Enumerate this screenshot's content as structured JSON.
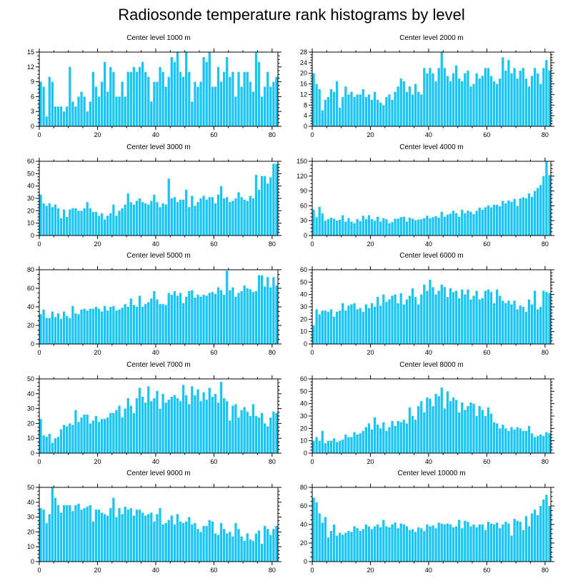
{
  "title": "Radiosonde temperature rank histograms by level",
  "colors": {
    "bar": "#1AC4F2",
    "axis": "#000000"
  },
  "chart_data": [
    {
      "type": "bar",
      "title": "Center level 1000 m",
      "xlim": [
        0,
        82
      ],
      "ylim": [
        0,
        15
      ],
      "xticks": [
        0,
        20,
        40,
        60,
        80
      ],
      "yticks": [
        0,
        3,
        6,
        9,
        12,
        15
      ],
      "values": [
        9,
        8,
        2,
        10,
        9,
        4,
        4,
        4,
        3,
        4,
        12,
        5,
        4,
        6,
        7,
        6,
        3,
        5,
        11,
        8,
        6,
        9,
        13,
        7,
        12,
        11,
        6,
        6,
        9,
        6,
        11,
        11,
        12,
        11,
        12,
        13,
        11,
        10,
        5,
        9,
        9,
        12,
        11,
        8,
        10,
        14,
        13,
        15,
        11,
        10,
        15,
        11,
        5,
        9,
        8,
        9,
        14,
        13,
        15,
        8,
        8,
        12,
        9,
        11,
        14,
        10,
        11,
        6,
        11,
        8,
        11,
        11,
        9,
        7,
        15,
        13,
        6,
        8,
        11,
        8,
        9,
        10
      ],
      "xlabel": "",
      "ylabel": ""
    },
    {
      "type": "bar",
      "title": "Center level 2000 m",
      "xlim": [
        0,
        82
      ],
      "ylim": [
        0,
        28
      ],
      "xticks": [
        0,
        20,
        40,
        60,
        80
      ],
      "yticks": [
        0,
        4,
        8,
        12,
        16,
        20,
        24,
        28
      ],
      "values": [
        20,
        16,
        14,
        6,
        10,
        11,
        14,
        13,
        17,
        7,
        11,
        15,
        12,
        13,
        11,
        12,
        12,
        14,
        11,
        12,
        10,
        13,
        10,
        9,
        8,
        11,
        12,
        10,
        13,
        15,
        18,
        17,
        13,
        15,
        12,
        16,
        13,
        12,
        22,
        20,
        22,
        20,
        17,
        22,
        28,
        22,
        19,
        17,
        20,
        23,
        18,
        17,
        20,
        21,
        15,
        16,
        20,
        18,
        19,
        22,
        22,
        19,
        17,
        16,
        18,
        26,
        21,
        25,
        20,
        22,
        18,
        21,
        22,
        18,
        15,
        19,
        22,
        20,
        16,
        22,
        25,
        21
      ],
      "xlabel": "",
      "ylabel": ""
    },
    {
      "type": "bar",
      "title": "Center level 3000 m",
      "xlim": [
        0,
        82
      ],
      "ylim": [
        0,
        60
      ],
      "xticks": [
        0,
        20,
        40,
        60,
        80
      ],
      "yticks": [
        0,
        10,
        20,
        30,
        40,
        50,
        60
      ],
      "values": [
        33,
        26,
        24,
        26,
        23,
        25,
        22,
        14,
        21,
        15,
        21,
        22,
        22,
        20,
        20,
        22,
        27,
        22,
        19,
        19,
        16,
        18,
        13,
        16,
        18,
        25,
        16,
        20,
        22,
        25,
        34,
        27,
        25,
        28,
        30,
        27,
        26,
        25,
        28,
        33,
        27,
        23,
        26,
        25,
        46,
        30,
        31,
        27,
        29,
        29,
        37,
        23,
        32,
        24,
        27,
        30,
        32,
        29,
        31,
        31,
        26,
        33,
        40,
        30,
        31,
        27,
        28,
        30,
        35,
        31,
        29,
        28,
        32,
        30,
        49,
        37,
        48,
        48,
        42,
        47,
        58,
        58
      ],
      "xlabel": "",
      "ylabel": ""
    },
    {
      "type": "bar",
      "title": "Center level 4000 m",
      "xlim": [
        0,
        82
      ],
      "ylim": [
        0,
        150
      ],
      "xticks": [
        0,
        20,
        40,
        60,
        80
      ],
      "yticks": [
        0,
        30,
        60,
        90,
        120,
        150
      ],
      "values": [
        52,
        37,
        58,
        45,
        30,
        33,
        36,
        34,
        30,
        32,
        41,
        28,
        35,
        28,
        25,
        33,
        29,
        40,
        33,
        41,
        33,
        30,
        38,
        28,
        35,
        33,
        25,
        27,
        34,
        34,
        37,
        38,
        28,
        36,
        34,
        31,
        32,
        33,
        35,
        40,
        35,
        37,
        39,
        36,
        48,
        38,
        42,
        44,
        50,
        45,
        38,
        52,
        45,
        50,
        48,
        43,
        50,
        56,
        52,
        57,
        61,
        57,
        62,
        62,
        59,
        70,
        65,
        71,
        68,
        74,
        60,
        75,
        77,
        75,
        85,
        78,
        90,
        96,
        102,
        120,
        150,
        122
      ],
      "xlabel": "",
      "ylabel": ""
    },
    {
      "type": "bar",
      "title": "Center level 5000 m",
      "xlim": [
        0,
        82
      ],
      "ylim": [
        0,
        80
      ],
      "xticks": [
        0,
        20,
        40,
        60,
        80
      ],
      "yticks": [
        0,
        20,
        40,
        60,
        80
      ],
      "values": [
        32,
        37,
        28,
        28,
        35,
        29,
        33,
        27,
        35,
        30,
        28,
        41,
        33,
        32,
        37,
        38,
        36,
        38,
        38,
        40,
        38,
        35,
        41,
        36,
        40,
        41,
        36,
        37,
        39,
        43,
        40,
        49,
        42,
        40,
        52,
        40,
        43,
        45,
        49,
        57,
        48,
        43,
        43,
        42,
        55,
        53,
        57,
        52,
        55,
        44,
        51,
        57,
        58,
        50,
        53,
        51,
        53,
        52,
        55,
        56,
        54,
        61,
        58,
        53,
        79,
        58,
        61,
        51,
        55,
        57,
        63,
        60,
        59,
        56,
        57,
        74,
        74,
        62,
        72,
        61,
        72,
        63
      ],
      "xlabel": "",
      "ylabel": ""
    },
    {
      "type": "bar",
      "title": "Center level 6000 m",
      "xlim": [
        0,
        82
      ],
      "ylim": [
        0,
        60
      ],
      "xticks": [
        0,
        20,
        40,
        60,
        80
      ],
      "yticks": [
        0,
        10,
        20,
        30,
        40,
        50,
        60
      ],
      "values": [
        15,
        28,
        24,
        27,
        27,
        26,
        28,
        22,
        26,
        27,
        33,
        27,
        31,
        32,
        33,
        28,
        29,
        26,
        32,
        29,
        33,
        30,
        38,
        31,
        40,
        34,
        36,
        39,
        40,
        33,
        41,
        32,
        36,
        39,
        45,
        38,
        32,
        40,
        48,
        43,
        52,
        46,
        40,
        43,
        48,
        46,
        38,
        45,
        42,
        43,
        37,
        44,
        40,
        44,
        36,
        39,
        43,
        36,
        37,
        43,
        44,
        42,
        33,
        44,
        39,
        35,
        33,
        35,
        32,
        35,
        28,
        31,
        30,
        26,
        36,
        32,
        43,
        28,
        30,
        43,
        42,
        41
      ],
      "xlabel": "",
      "ylabel": ""
    },
    {
      "type": "bar",
      "title": "Center level 7000 m",
      "xlim": [
        0,
        82
      ],
      "ylim": [
        0,
        50
      ],
      "xticks": [
        0,
        20,
        40,
        60,
        80
      ],
      "yticks": [
        0,
        10,
        20,
        30,
        40,
        50
      ],
      "values": [
        23,
        12,
        11,
        13,
        7,
        10,
        11,
        16,
        19,
        18,
        20,
        19,
        29,
        21,
        24,
        26,
        26,
        20,
        22,
        25,
        21,
        23,
        23,
        24,
        27,
        27,
        29,
        32,
        24,
        30,
        37,
        32,
        27,
        37,
        44,
        38,
        34,
        45,
        35,
        37,
        42,
        30,
        40,
        34,
        36,
        38,
        39,
        37,
        35,
        46,
        39,
        33,
        45,
        39,
        43,
        35,
        41,
        36,
        44,
        38,
        40,
        34,
        48,
        37,
        35,
        22,
        32,
        33,
        24,
        29,
        31,
        28,
        25,
        33,
        25,
        24,
        27,
        20,
        18,
        24,
        28,
        27
      ],
      "xlabel": "",
      "ylabel": ""
    },
    {
      "type": "bar",
      "title": "Center level 8000 m",
      "xlim": [
        0,
        82
      ],
      "ylim": [
        0,
        60
      ],
      "xticks": [
        0,
        20,
        40,
        60,
        80
      ],
      "yticks": [
        0,
        10,
        20,
        30,
        40,
        50,
        60
      ],
      "values": [
        10,
        13,
        10,
        18,
        8,
        10,
        10,
        12,
        9,
        10,
        11,
        15,
        13,
        13,
        17,
        15,
        16,
        18,
        21,
        24,
        19,
        29,
        23,
        20,
        25,
        18,
        21,
        26,
        22,
        26,
        25,
        27,
        24,
        37,
        30,
        27,
        38,
        42,
        33,
        45,
        44,
        38,
        48,
        46,
        53,
        36,
        50,
        42,
        45,
        43,
        33,
        41,
        35,
        38,
        41,
        40,
        30,
        38,
        35,
        30,
        37,
        32,
        25,
        24,
        20,
        23,
        20,
        18,
        21,
        19,
        21,
        20,
        18,
        18,
        22,
        16,
        13,
        14,
        15,
        14,
        17,
        16
      ],
      "xlabel": "",
      "ylabel": ""
    },
    {
      "type": "bar",
      "title": "Center level 9000 m",
      "xlim": [
        0,
        82
      ],
      "ylim": [
        0,
        50
      ],
      "xticks": [
        0,
        20,
        40,
        60,
        80
      ],
      "yticks": [
        0,
        10,
        20,
        30,
        40,
        50
      ],
      "values": [
        36,
        35,
        26,
        32,
        50,
        43,
        38,
        33,
        38,
        38,
        38,
        34,
        38,
        39,
        35,
        36,
        37,
        38,
        27,
        35,
        35,
        33,
        32,
        31,
        36,
        43,
        30,
        36,
        32,
        37,
        35,
        36,
        31,
        35,
        35,
        33,
        31,
        32,
        33,
        27,
        32,
        36,
        25,
        26,
        28,
        31,
        25,
        32,
        27,
        26,
        27,
        30,
        25,
        26,
        22,
        20,
        24,
        24,
        28,
        27,
        19,
        18,
        26,
        22,
        19,
        20,
        17,
        26,
        22,
        17,
        14,
        19,
        15,
        14,
        19,
        21,
        12,
        24,
        22,
        18,
        22,
        24
      ],
      "xlabel": "",
      "ylabel": ""
    },
    {
      "type": "bar",
      "title": "Center level 10000 m",
      "xlim": [
        0,
        82
      ],
      "ylim": [
        0,
        80
      ],
      "xticks": [
        0,
        20,
        40,
        60,
        80
      ],
      "yticks": [
        0,
        20,
        40,
        60,
        80
      ],
      "values": [
        69,
        64,
        52,
        42,
        48,
        26,
        33,
        40,
        28,
        31,
        29,
        31,
        33,
        32,
        38,
        36,
        33,
        35,
        40,
        38,
        35,
        38,
        40,
        37,
        45,
        38,
        37,
        40,
        42,
        36,
        41,
        40,
        38,
        34,
        35,
        32,
        37,
        36,
        33,
        40,
        38,
        39,
        36,
        42,
        41,
        40,
        41,
        40,
        37,
        38,
        45,
        36,
        44,
        43,
        38,
        40,
        37,
        40,
        40,
        34,
        43,
        41,
        40,
        42,
        36,
        40,
        43,
        41,
        28,
        46,
        44,
        43,
        34,
        49,
        38,
        52,
        56,
        50,
        60,
        67,
        72,
        60
      ],
      "xlabel": "",
      "ylabel": ""
    }
  ]
}
